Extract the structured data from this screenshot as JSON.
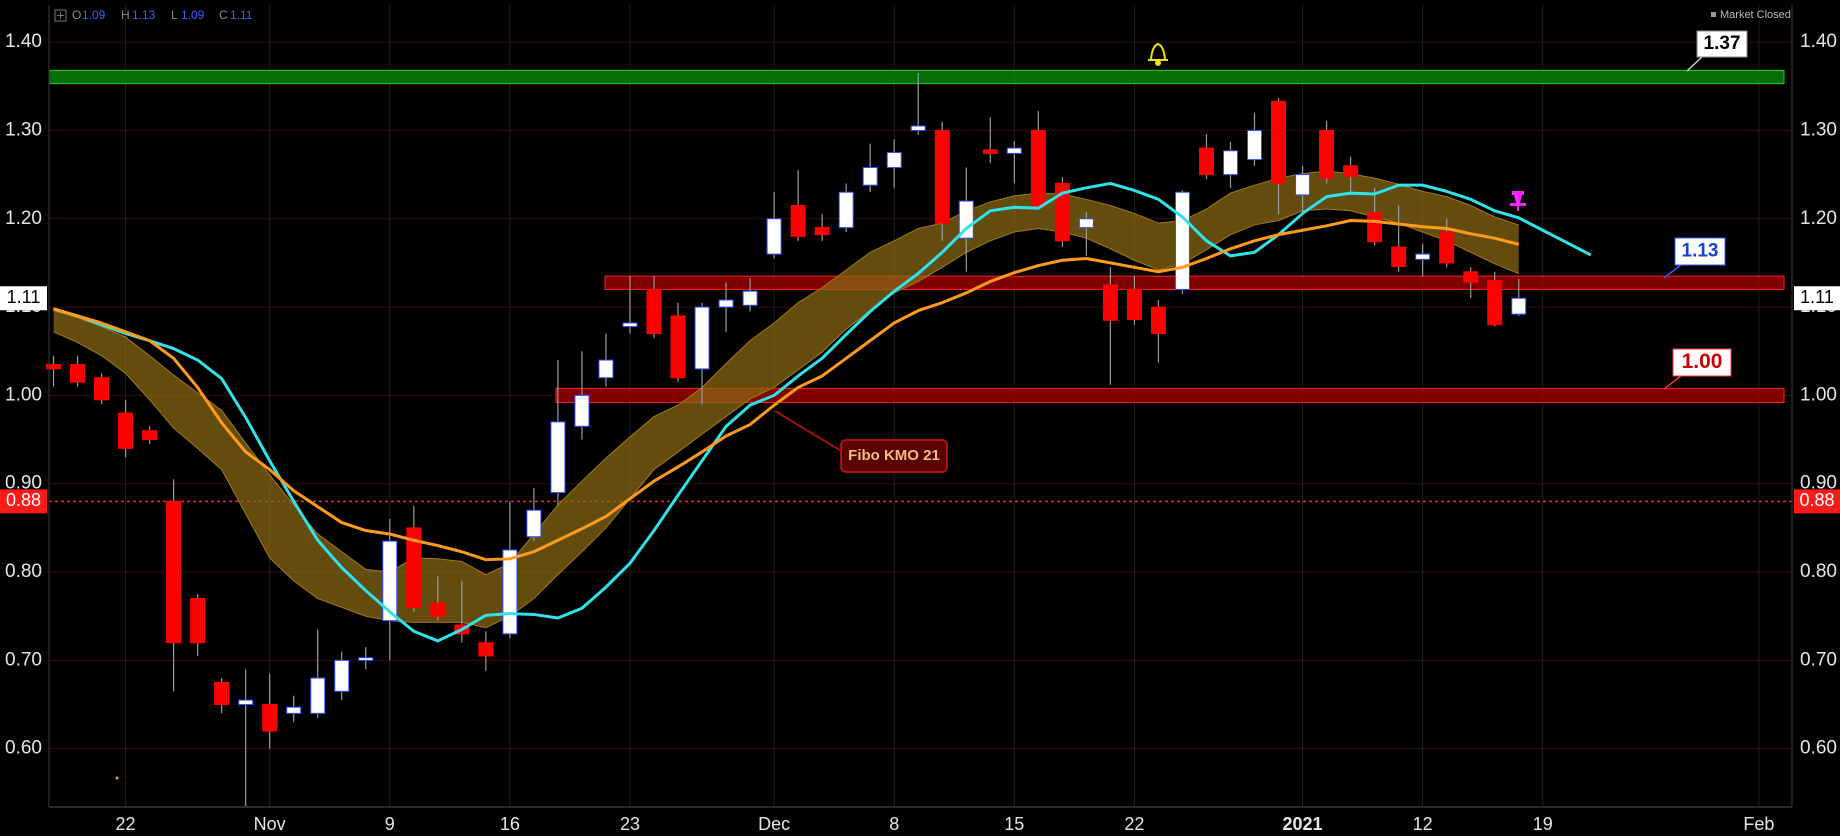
{
  "chart_data": {
    "type": "candlestick",
    "ohlc_header": [
      {
        "label": "O",
        "value": 1.09
      },
      {
        "label": "H",
        "value": 1.13
      },
      {
        "label": "L",
        "value": 1.09
      },
      {
        "label": "C",
        "value": 1.11
      }
    ],
    "status": "Market Closed",
    "categories": [
      null,
      null,
      null,
      "22",
      null,
      null,
      null,
      null,
      null,
      "Nov",
      null,
      null,
      null,
      null,
      "9",
      null,
      null,
      null,
      null,
      "16",
      null,
      null,
      null,
      null,
      "23",
      null,
      null,
      null,
      null,
      null,
      "Dec",
      null,
      null,
      null,
      null,
      "8",
      null,
      null,
      null,
      null,
      "15",
      null,
      null,
      null,
      null,
      "22",
      null,
      null,
      null,
      null,
      null,
      null,
      "2021",
      null,
      null,
      null,
      null,
      "12",
      null,
      null,
      null,
      null,
      "19",
      null,
      null,
      null,
      null,
      null,
      null,
      null,
      null,
      "Feb",
      null,
      null
    ],
    "ylim": [
      0.534,
      1.442
    ],
    "yticks": [
      {
        "value": 0.6,
        "label": "0.60"
      },
      {
        "value": 0.7,
        "label": "0.70"
      },
      {
        "value": 0.8,
        "label": "0.80"
      },
      {
        "value": 0.9,
        "label": "0.90"
      },
      {
        "value": 1.0,
        "label": "1.00"
      },
      {
        "value": 1.1,
        "label": "1.10"
      },
      {
        "value": 1.2,
        "label": "1.20"
      },
      {
        "value": 1.3,
        "label": "1.30"
      },
      {
        "value": 1.4,
        "label": "1.40"
      }
    ],
    "grid": true,
    "up_color": "#ffffff",
    "down_color": "#ff0000",
    "ohlc": {
      "open": [
        1.035,
        1.035,
        1.02,
        0.98,
        0.96,
        0.88,
        0.77,
        0.675,
        0.65,
        0.65,
        0.64,
        0.64,
        0.665,
        0.7,
        0.745,
        0.85,
        0.765,
        0.74,
        0.72,
        0.73,
        0.84,
        0.89,
        0.965,
        1.02,
        1.078,
        1.12,
        1.09,
        1.03,
        1.1,
        1.102,
        1.16,
        1.215,
        1.19,
        1.19,
        1.238,
        1.258,
        1.3,
        1.3,
        1.178,
        1.278,
        1.274,
        1.3,
        1.24,
        1.19,
        1.125,
        1.12,
        1.1,
        1.12,
        1.28,
        1.25,
        1.267,
        1.333,
        1.227,
        1.3,
        1.26,
        1.207,
        1.168,
        1.154,
        1.185,
        1.14,
        1.13,
        1.092,
        null,
        null,
        null,
        null,
        null,
        null,
        null,
        null,
        null,
        null,
        null
      ],
      "high": [
        1.045,
        1.045,
        1.025,
        0.995,
        0.965,
        0.905,
        0.775,
        0.68,
        0.69,
        0.685,
        0.66,
        0.735,
        0.71,
        0.715,
        0.86,
        0.875,
        0.795,
        0.79,
        0.733,
        0.88,
        0.895,
        1.04,
        1.05,
        1.07,
        1.135,
        1.135,
        1.105,
        1.105,
        1.128,
        1.133,
        1.23,
        1.255,
        1.205,
        1.24,
        1.285,
        1.29,
        1.365,
        1.31,
        1.258,
        1.315,
        1.288,
        1.322,
        1.247,
        1.208,
        1.145,
        1.135,
        1.108,
        1.232,
        1.296,
        1.287,
        1.32,
        1.337,
        1.26,
        1.311,
        1.27,
        1.235,
        1.215,
        1.172,
        1.2,
        1.145,
        1.14,
        1.132,
        null,
        null,
        null,
        null,
        null,
        null,
        null,
        null,
        null,
        null,
        null
      ],
      "low": [
        1.01,
        1.01,
        0.99,
        0.93,
        0.945,
        0.665,
        0.705,
        0.64,
        0.535,
        0.6,
        0.63,
        0.635,
        0.655,
        0.69,
        0.7,
        0.755,
        0.745,
        0.72,
        0.688,
        0.725,
        0.835,
        0.875,
        0.95,
        1.01,
        1.07,
        1.065,
        1.015,
        0.99,
        1.072,
        1.095,
        1.155,
        1.175,
        1.175,
        1.185,
        1.23,
        1.235,
        1.295,
        1.175,
        1.14,
        1.263,
        1.24,
        1.21,
        1.168,
        1.158,
        1.012,
        1.08,
        1.037,
        1.115,
        1.245,
        1.235,
        1.26,
        1.205,
        1.205,
        1.24,
        1.23,
        1.17,
        1.14,
        1.135,
        1.145,
        1.11,
        1.078,
        1.09,
        null,
        null,
        null,
        null,
        null,
        null,
        null,
        null,
        null,
        null,
        null
      ],
      "close": [
        1.03,
        1.015,
        0.995,
        0.94,
        0.95,
        0.72,
        0.72,
        0.65,
        0.655,
        0.62,
        0.647,
        0.68,
        0.7,
        0.703,
        0.835,
        0.76,
        0.75,
        0.73,
        0.705,
        0.825,
        0.87,
        0.97,
        1.0,
        1.04,
        1.082,
        1.07,
        1.02,
        1.1,
        1.108,
        1.118,
        1.2,
        1.18,
        1.182,
        1.23,
        1.258,
        1.275,
        1.305,
        1.195,
        1.22,
        1.274,
        1.28,
        1.213,
        1.175,
        1.2,
        1.085,
        1.086,
        1.07,
        1.23,
        1.25,
        1.277,
        1.3,
        1.24,
        1.25,
        1.246,
        1.248,
        1.174,
        1.146,
        1.16,
        1.15,
        1.128,
        1.08,
        1.11,
        null,
        null,
        null,
        null,
        null,
        null,
        null,
        null,
        null,
        null,
        null
      ]
    },
    "band": {
      "color": "#8b6a14",
      "upper": [
        1.096,
        1.088,
        1.078,
        1.066,
        1.045,
        1.023,
        1.003,
        0.983,
        0.946,
        0.91,
        0.876,
        0.843,
        0.823,
        0.803,
        0.8,
        0.816,
        0.815,
        0.812,
        0.797,
        0.81,
        0.843,
        0.876,
        0.903,
        0.929,
        0.953,
        0.976,
        0.989,
        1.009,
        1.036,
        1.062,
        1.082,
        1.105,
        1.122,
        1.142,
        1.162,
        1.175,
        1.189,
        1.195,
        1.209,
        1.219,
        1.226,
        1.229,
        1.228,
        1.222,
        1.215,
        1.206,
        1.195,
        1.198,
        1.211,
        1.229,
        1.238,
        1.246,
        1.251,
        1.254,
        1.251,
        1.246,
        1.239,
        1.231,
        1.225,
        1.215,
        1.202,
        1.193,
        null,
        null,
        null,
        null,
        null,
        null,
        null,
        null,
        null,
        null,
        null
      ],
      "lower": [
        1.072,
        1.06,
        1.045,
        1.025,
        0.995,
        0.963,
        0.94,
        0.916,
        0.866,
        0.816,
        0.79,
        0.77,
        0.76,
        0.75,
        0.745,
        0.743,
        0.743,
        0.743,
        0.737,
        0.75,
        0.77,
        0.797,
        0.823,
        0.85,
        0.883,
        0.916,
        0.936,
        0.956,
        0.976,
        0.996,
        1.009,
        1.029,
        1.049,
        1.075,
        1.096,
        1.116,
        1.129,
        1.145,
        1.162,
        1.175,
        1.185,
        1.189,
        1.185,
        1.178,
        1.166,
        1.153,
        1.142,
        1.149,
        1.165,
        1.182,
        1.193,
        1.198,
        1.209,
        1.211,
        1.209,
        1.202,
        1.195,
        1.185,
        1.175,
        1.162,
        1.149,
        1.138,
        null,
        null,
        null,
        null,
        null,
        null,
        null,
        null,
        null,
        null,
        null
      ]
    },
    "lines": [
      {
        "color": "#2ee3ea",
        "values": [
          1.098,
          1.09,
          1.08,
          1.07,
          1.062,
          1.053,
          1.04,
          1.019,
          0.975,
          0.926,
          0.88,
          0.836,
          0.805,
          0.779,
          0.755,
          0.733,
          0.722,
          0.735,
          0.751,
          0.753,
          0.752,
          0.748,
          0.759,
          0.783,
          0.81,
          0.847,
          0.887,
          0.926,
          0.965,
          0.989,
          1.0,
          1.022,
          1.042,
          1.069,
          1.095,
          1.118,
          1.138,
          1.162,
          1.189,
          1.209,
          1.213,
          1.212,
          1.229,
          1.235,
          1.24,
          1.232,
          1.222,
          1.202,
          1.175,
          1.158,
          1.162,
          1.182,
          1.206,
          1.225,
          1.229,
          1.228,
          1.238,
          1.238,
          1.231,
          1.222,
          1.209,
          1.201,
          1.187,
          1.173,
          1.159,
          null,
          null,
          null,
          null,
          null,
          null,
          null,
          null
        ]
      },
      {
        "color": "#ff9a1a",
        "values": [
          1.098,
          1.09,
          1.082,
          1.072,
          1.062,
          1.042,
          1.009,
          0.969,
          0.936,
          0.916,
          0.892,
          0.874,
          0.856,
          0.847,
          0.843,
          0.836,
          0.83,
          0.823,
          0.814,
          0.815,
          0.823,
          0.836,
          0.849,
          0.863,
          0.883,
          0.903,
          0.919,
          0.936,
          0.954,
          0.967,
          0.989,
          1.009,
          1.022,
          1.042,
          1.062,
          1.082,
          1.096,
          1.105,
          1.116,
          1.129,
          1.139,
          1.147,
          1.153,
          1.155,
          1.15,
          1.145,
          1.14,
          1.145,
          1.155,
          1.166,
          1.175,
          1.182,
          1.187,
          1.192,
          1.198,
          1.197,
          1.194,
          1.191,
          1.189,
          1.183,
          1.178,
          1.171,
          null,
          null,
          null,
          null,
          null,
          null,
          null,
          null,
          null,
          null,
          null
        ]
      }
    ],
    "zones": [
      {
        "label": "1.37",
        "low": 1.353,
        "high": 1.368,
        "color": "#0a8a0a"
      },
      {
        "label": "1.13",
        "low": 1.12,
        "high": 1.135,
        "color": "#a00000"
      },
      {
        "label": "1.00",
        "low": 0.992,
        "high": 1.008,
        "color": "#a00000"
      }
    ],
    "alert_line": {
      "value": 0.88,
      "label": "0.88"
    },
    "last_price": 1.11,
    "annotation": "Fibo KMO 21"
  }
}
